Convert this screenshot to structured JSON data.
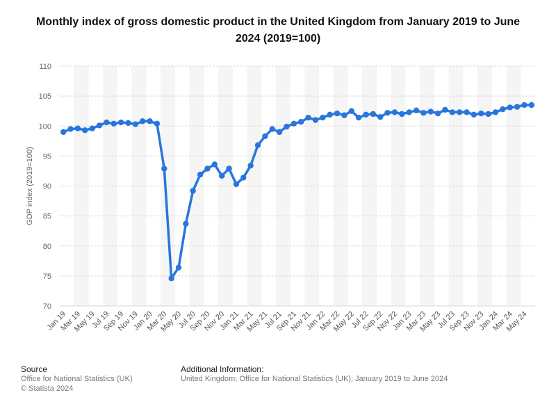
{
  "title": "Monthly index of gross domestic product in the United Kingdom from January 2019 to June 2024 (2019=100)",
  "chart_data": {
    "type": "line",
    "ylabel": "GDP index (2019=100)",
    "xlabel": "",
    "ylim": [
      70,
      110
    ],
    "yticks": [
      70,
      75,
      80,
      85,
      90,
      95,
      100,
      105,
      110
    ],
    "grid": true,
    "color": "#2876dd",
    "x": [
      "Jan 19",
      "Feb 19",
      "Mar 19",
      "Apr 19",
      "May 19",
      "Jun 19",
      "Jul 19",
      "Aug 19",
      "Sep 19",
      "Oct 19",
      "Nov 19",
      "Dec 19",
      "Jan 20",
      "Feb 20",
      "Mar 20",
      "Apr 20",
      "May 20",
      "Jun 20",
      "Jul 20",
      "Aug 20",
      "Sep 20",
      "Oct 20",
      "Nov 20",
      "Dec 20",
      "Jan 21",
      "Feb 21",
      "Mar 21",
      "Apr 21",
      "May 21",
      "Jun 21",
      "Jul 21",
      "Aug 21",
      "Sep 21",
      "Oct 21",
      "Nov 21",
      "Dec 21",
      "Jan 22",
      "Feb 22",
      "Mar 22",
      "Apr 22",
      "May 22",
      "Jun 22",
      "Jul 22",
      "Aug 22",
      "Sep 22",
      "Oct 22",
      "Nov 22",
      "Dec 22",
      "Jan 23",
      "Feb 23",
      "Mar 23",
      "Apr 23",
      "May 23",
      "Jun 23",
      "Jul 23",
      "Aug 23",
      "Sep 23",
      "Oct 23",
      "Nov 23",
      "Dec 23",
      "Jan 24",
      "Feb 24",
      "Mar 24",
      "Apr 24",
      "May 24",
      "Jun 24"
    ],
    "x_tick_labels": [
      "Jan 19",
      "Mar 19",
      "May 19",
      "Jul 19",
      "Sep 19",
      "Nov 19",
      "Jan 20",
      "Mar 20",
      "May 20",
      "Jul 20",
      "Sep 20",
      "Nov 20",
      "Jan 21",
      "Mar 21",
      "May 21",
      "Jul 21",
      "Sep 21",
      "Nov 21",
      "Jan 22",
      "Mar 22",
      "May 22",
      "Jul 22",
      "Sep 22",
      "Nov 22",
      "Jan 23",
      "Mar 23",
      "May 23",
      "Jul 23",
      "Sep 23",
      "Nov 23",
      "Jan 24",
      "Mar 24",
      "May 24"
    ],
    "values": [
      99.0,
      99.5,
      99.6,
      99.3,
      99.6,
      100.1,
      100.6,
      100.4,
      100.6,
      100.5,
      100.3,
      100.8,
      100.8,
      100.4,
      92.9,
      74.6,
      76.4,
      83.7,
      89.2,
      91.9,
      92.9,
      93.6,
      91.7,
      92.9,
      90.3,
      91.4,
      93.4,
      96.8,
      98.3,
      99.5,
      99.0,
      99.9,
      100.4,
      100.7,
      101.4,
      101.0,
      101.4,
      101.9,
      102.1,
      101.8,
      102.5,
      101.4,
      101.9,
      102.0,
      101.5,
      102.2,
      102.3,
      102.0,
      102.3,
      102.6,
      102.2,
      102.4,
      102.1,
      102.7,
      102.3,
      102.3,
      102.3,
      101.9,
      102.1,
      102.0,
      102.3,
      102.8,
      103.1,
      103.2,
      103.5,
      103.5
    ]
  },
  "footer": {
    "source_head": "Source",
    "source_line1": "Office for National Statistics (UK)",
    "source_line2": "© Statista 2024",
    "info_head": "Additional Information:",
    "info_line1": "United Kingdom; Office for National Statistics (UK); January 2019 to June 2024"
  }
}
